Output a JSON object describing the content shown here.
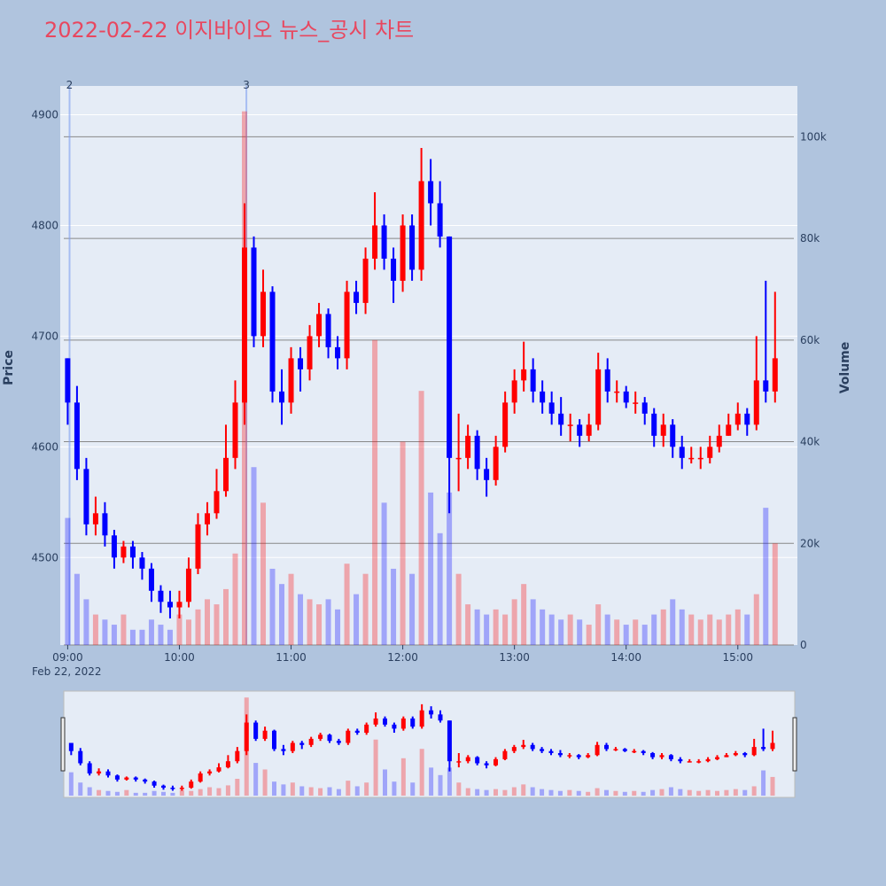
{
  "chart_data": {
    "type": "candlestick",
    "title": "2022-02-22 이지바이오 뉴스_공시 차트",
    "y_title": "Price",
    "y2_title": "Volume",
    "x_date_label": "Feb 22, 2022",
    "increasing_color": "#ff0000",
    "decreasing_color": "#0000ff",
    "x": [
      "2022-02-22 09:00",
      "2022-02-22 09:05",
      "2022-02-22 09:10",
      "2022-02-22 09:15",
      "2022-02-22 09:20",
      "2022-02-22 09:25",
      "2022-02-22 09:30",
      "2022-02-22 09:35",
      "2022-02-22 09:40",
      "2022-02-22 09:45",
      "2022-02-22 09:50",
      "2022-02-22 09:55",
      "2022-02-22 10:00",
      "2022-02-22 10:05",
      "2022-02-22 10:10",
      "2022-02-22 10:15",
      "2022-02-22 10:20",
      "2022-02-22 10:25",
      "2022-02-22 10:30",
      "2022-02-22 10:35",
      "2022-02-22 10:40",
      "2022-02-22 10:45",
      "2022-02-22 10:50",
      "2022-02-22 10:55",
      "2022-02-22 11:00",
      "2022-02-22 11:05",
      "2022-02-22 11:10",
      "2022-02-22 11:15",
      "2022-02-22 11:20",
      "2022-02-22 11:25",
      "2022-02-22 11:30",
      "2022-02-22 11:35",
      "2022-02-22 11:40",
      "2022-02-22 11:45",
      "2022-02-22 11:50",
      "2022-02-22 11:55",
      "2022-02-22 12:00",
      "2022-02-22 12:05",
      "2022-02-22 12:10",
      "2022-02-22 12:15",
      "2022-02-22 12:20",
      "2022-02-22 12:25",
      "2022-02-22 12:30",
      "2022-02-22 12:35",
      "2022-02-22 12:40",
      "2022-02-22 12:45",
      "2022-02-22 12:50",
      "2022-02-22 12:55",
      "2022-02-22 13:00",
      "2022-02-22 13:05",
      "2022-02-22 13:10",
      "2022-02-22 13:15",
      "2022-02-22 13:20",
      "2022-02-22 13:25",
      "2022-02-22 13:30",
      "2022-02-22 13:35",
      "2022-02-22 13:40",
      "2022-02-22 13:45",
      "2022-02-22 13:50",
      "2022-02-22 13:55",
      "2022-02-22 14:00",
      "2022-02-22 14:05",
      "2022-02-22 14:10",
      "2022-02-22 14:15",
      "2022-02-22 14:20",
      "2022-02-22 14:25",
      "2022-02-22 14:30",
      "2022-02-22 14:35",
      "2022-02-22 14:40",
      "2022-02-22 14:45",
      "2022-02-22 14:50",
      "2022-02-22 14:55",
      "2022-02-22 15:00",
      "2022-02-22 15:05",
      "2022-02-22 15:10",
      "2022-02-22 15:15",
      "2022-02-22 15:20"
    ],
    "open": [
      4680,
      4640,
      4580,
      4530,
      4540,
      4520,
      4500,
      4510,
      4500,
      4490,
      4470,
      4460,
      4455,
      4460,
      4490,
      4530,
      4540,
      4560,
      4590,
      4640,
      4780,
      4700,
      4740,
      4650,
      4640,
      4680,
      4670,
      4700,
      4720,
      4690,
      4680,
      4740,
      4730,
      4770,
      4800,
      4770,
      4750,
      4800,
      4760,
      4840,
      4820,
      4790,
      4590,
      4590,
      4610,
      4580,
      4570,
      4600,
      4640,
      4660,
      4670,
      4650,
      4640,
      4630,
      4620,
      4620,
      4610,
      4620,
      4670,
      4650,
      4650,
      4640,
      4640,
      4630,
      4610,
      4620,
      4600,
      4590,
      4590,
      4590,
      4600,
      4610,
      4620,
      4630,
      4620,
      4660,
      4650
    ],
    "high": [
      4680,
      4655,
      4590,
      4555,
      4550,
      4525,
      4515,
      4515,
      4505,
      4495,
      4475,
      4470,
      4470,
      4500,
      4540,
      4550,
      4580,
      4620,
      4660,
      4820,
      4790,
      4760,
      4745,
      4670,
      4690,
      4690,
      4710,
      4730,
      4725,
      4700,
      4750,
      4750,
      4780,
      4830,
      4810,
      4780,
      4810,
      4810,
      4870,
      4860,
      4840,
      4790,
      4630,
      4620,
      4615,
      4590,
      4610,
      4650,
      4670,
      4695,
      4680,
      4660,
      4650,
      4645,
      4630,
      4625,
      4630,
      4685,
      4680,
      4660,
      4655,
      4650,
      4645,
      4635,
      4630,
      4625,
      4610,
      4600,
      4600,
      4610,
      4620,
      4630,
      4640,
      4635,
      4700,
      4750,
      4740
    ],
    "low": [
      4620,
      4570,
      4520,
      4520,
      4510,
      4490,
      4495,
      4490,
      4480,
      4460,
      4450,
      4445,
      4445,
      4455,
      4485,
      4520,
      4535,
      4555,
      4580,
      4620,
      4690,
      4690,
      4640,
      4620,
      4630,
      4650,
      4660,
      4690,
      4680,
      4670,
      4670,
      4720,
      4720,
      4760,
      4760,
      4730,
      4740,
      4750,
      4750,
      4800,
      4780,
      4540,
      4560,
      4580,
      4570,
      4555,
      4565,
      4595,
      4630,
      4650,
      4640,
      4630,
      4620,
      4610,
      4605,
      4600,
      4605,
      4615,
      4640,
      4640,
      4635,
      4630,
      4620,
      4600,
      4600,
      4590,
      4580,
      4585,
      4580,
      4585,
      4595,
      4610,
      4615,
      4610,
      4615,
      4640,
      4640
    ],
    "close": [
      4640,
      4580,
      4530,
      4540,
      4520,
      4500,
      4510,
      4500,
      4490,
      4470,
      4460,
      4455,
      4460,
      4490,
      4530,
      4540,
      4560,
      4590,
      4640,
      4780,
      4700,
      4740,
      4650,
      4640,
      4680,
      4670,
      4700,
      4720,
      4690,
      4680,
      4740,
      4730,
      4770,
      4800,
      4770,
      4750,
      4800,
      4760,
      4840,
      4820,
      4790,
      4590,
      4590,
      4610,
      4580,
      4570,
      4600,
      4640,
      4660,
      4670,
      4650,
      4640,
      4630,
      4620,
      4620,
      4610,
      4620,
      4670,
      4650,
      4650,
      4640,
      4640,
      4630,
      4610,
      4620,
      4600,
      4590,
      4590,
      4590,
      4600,
      4610,
      4620,
      4630,
      4620,
      4660,
      4650,
      4680
    ],
    "volume": [
      25000,
      14000,
      9000,
      6000,
      5000,
      4000,
      6000,
      3000,
      3000,
      5000,
      4000,
      3000,
      6000,
      5000,
      7000,
      9000,
      8000,
      11000,
      18000,
      105000,
      35000,
      28000,
      15000,
      12000,
      14000,
      10000,
      9000,
      8000,
      9000,
      7000,
      16000,
      10000,
      14000,
      60000,
      28000,
      15000,
      40000,
      14000,
      50000,
      30000,
      22000,
      30000,
      14000,
      8000,
      7000,
      6000,
      7000,
      6000,
      9000,
      12000,
      9000,
      7000,
      6000,
      5000,
      6000,
      5000,
      4000,
      8000,
      6000,
      5000,
      4000,
      5000,
      4000,
      6000,
      7000,
      9000,
      7000,
      6000,
      5000,
      6000,
      5000,
      6000,
      7000,
      6000,
      10000,
      27000,
      20000
    ],
    "xlim": [
      "2022-02-22 08:56",
      "2022-02-22 15:32"
    ],
    "xticks": [
      {
        "value": "2022-02-22 09:00",
        "label": "09:00"
      },
      {
        "value": "2022-02-22 10:00",
        "label": "10:00"
      },
      {
        "value": "2022-02-22 11:00",
        "label": "11:00"
      },
      {
        "value": "2022-02-22 12:00",
        "label": "12:00"
      },
      {
        "value": "2022-02-22 13:00",
        "label": "13:00"
      },
      {
        "value": "2022-02-22 14:00",
        "label": "14:00"
      },
      {
        "value": "2022-02-22 15:00",
        "label": "15:00"
      }
    ],
    "ylim": [
      4421,
      4926
    ],
    "yticks": [
      4500,
      4600,
      4700,
      4800,
      4900
    ],
    "y2lim": [
      0,
      110000
    ],
    "y2ticks": [
      0,
      {
        "value": 20000,
        "label": "20k"
      },
      {
        "value": 40000,
        "label": "40k"
      },
      {
        "value": 60000,
        "label": "60k"
      },
      {
        "value": 80000,
        "label": "80k"
      },
      {
        "value": 100000,
        "label": "100k"
      }
    ],
    "annotations": [
      {
        "x": "2022-02-22 09:01",
        "text": "2"
      },
      {
        "x": "2022-02-22 10:36",
        "text": "3"
      }
    ],
    "grid": true,
    "rangeslider": true
  }
}
